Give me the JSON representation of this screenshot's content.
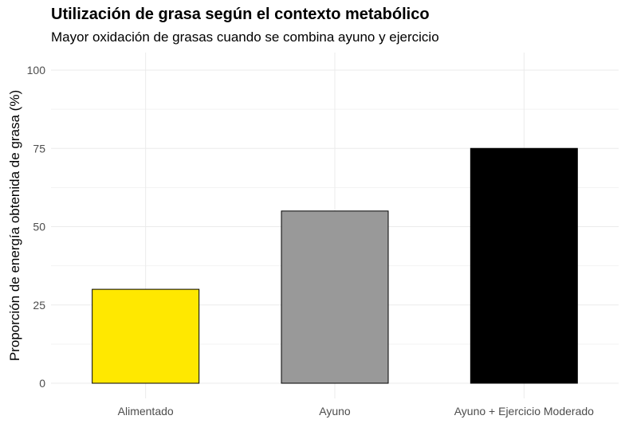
{
  "chart_data": {
    "type": "bar",
    "title": "Utilización de grasa según el contexto metabólico",
    "subtitle": "Mayor oxidación de grasas cuando se combina ayuno y ejercicio",
    "xlabel": "",
    "ylabel": "Proporción de energía obtenida de grasa (%)",
    "categories": [
      "Alimentado",
      "Ayuno",
      "Ayuno + Ejercicio Moderado"
    ],
    "values": [
      30,
      55,
      75
    ],
    "colors": [
      "#FFE800",
      "#999999",
      "#000000"
    ],
    "ylim": [
      0,
      100
    ],
    "yticks": [
      0,
      25,
      50,
      75,
      100
    ],
    "grid": true,
    "legend": "none"
  }
}
